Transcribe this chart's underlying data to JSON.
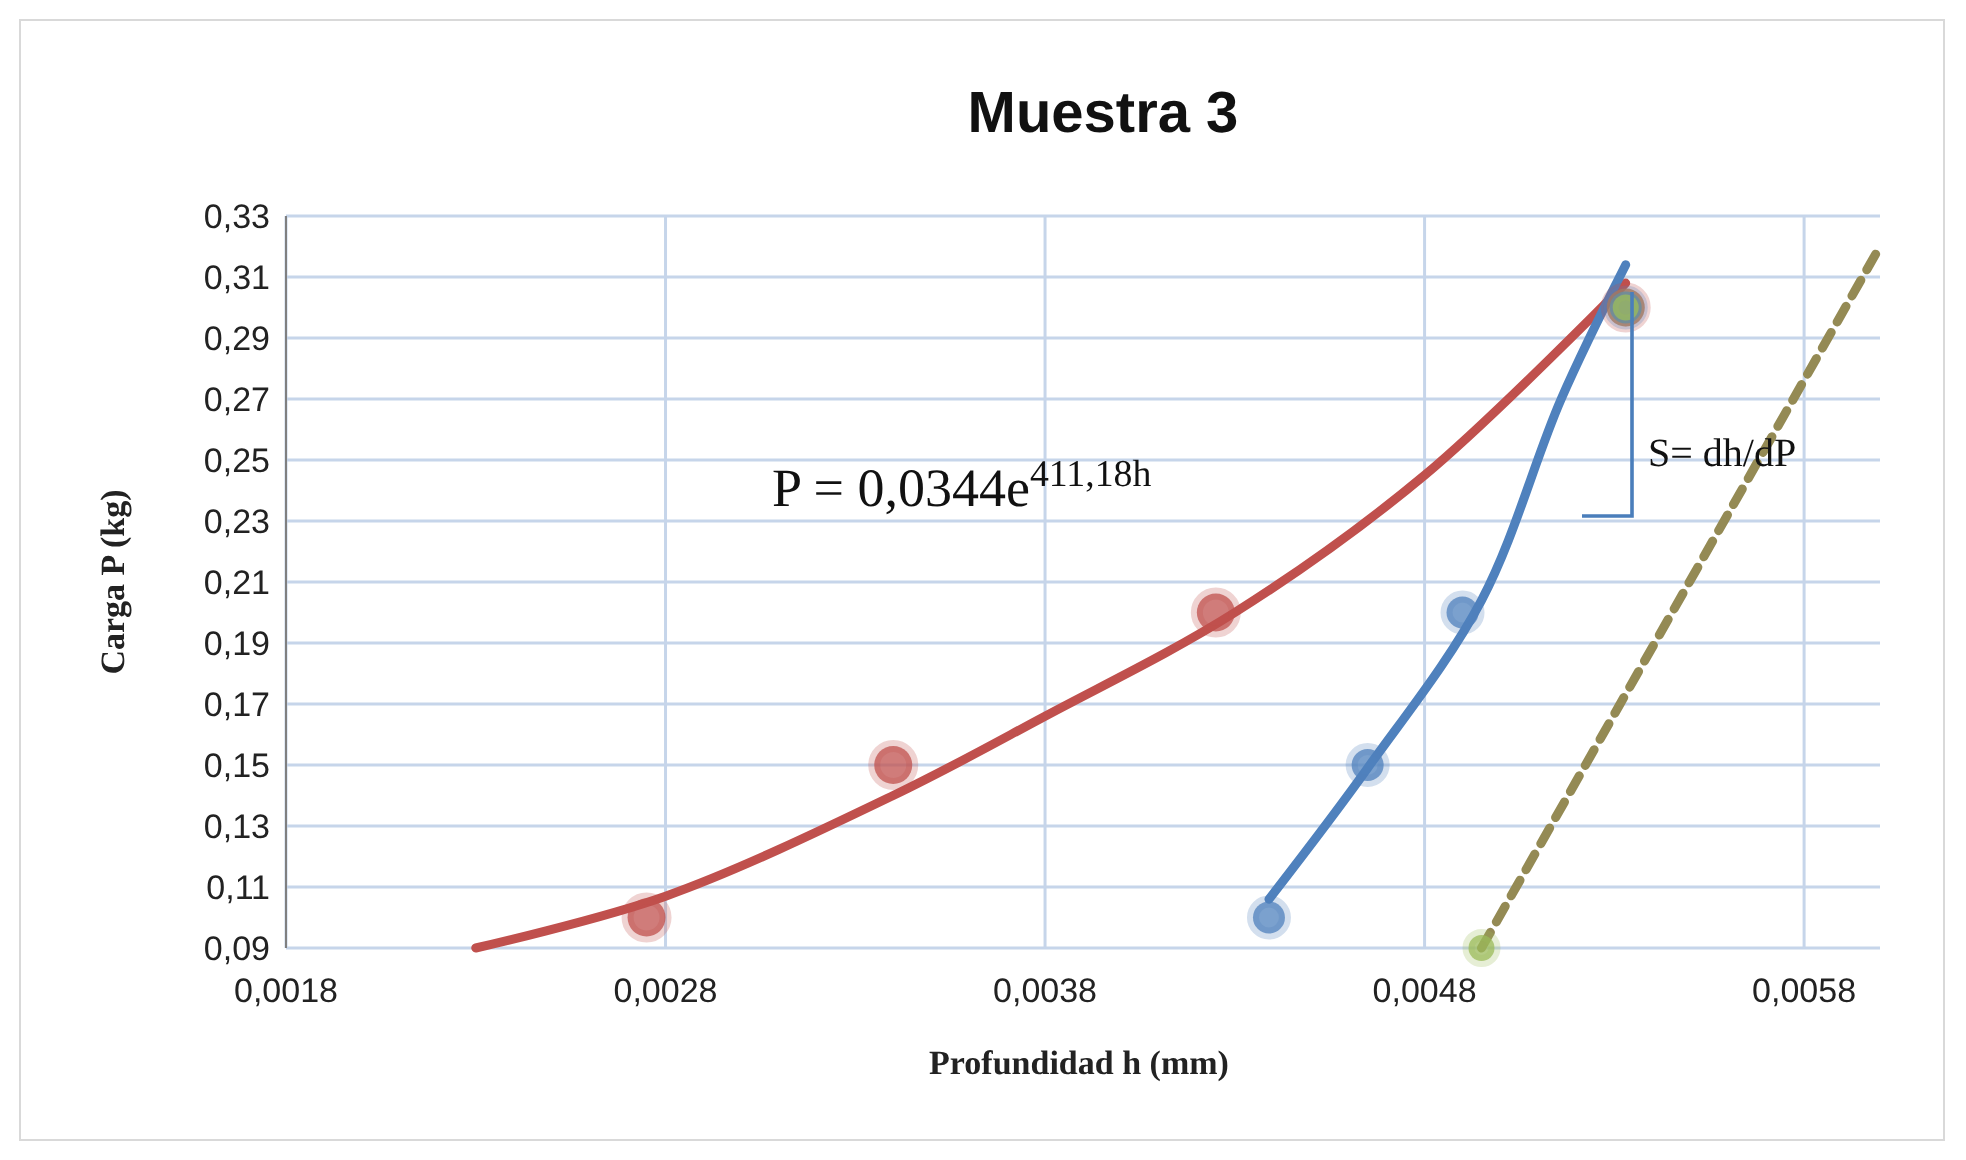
{
  "chart_data": {
    "type": "scatter",
    "title": "Muestra 3",
    "xlabel": "Profundidad h  (mm)",
    "ylabel": "Carga P (kg)",
    "xlim": [
      0.0018,
      0.006
    ],
    "ylim": [
      0.09,
      0.33
    ],
    "xticks": [
      {
        "value": 0.0018,
        "label": "0,0018"
      },
      {
        "value": 0.0028,
        "label": "0,0028"
      },
      {
        "value": 0.0038,
        "label": "0,0038"
      },
      {
        "value": 0.0048,
        "label": "0,0048"
      },
      {
        "value": 0.0058,
        "label": "0,0058"
      }
    ],
    "yticks": [
      {
        "value": 0.09,
        "label": "0,09"
      },
      {
        "value": 0.11,
        "label": "0,11"
      },
      {
        "value": 0.13,
        "label": "0,13"
      },
      {
        "value": 0.15,
        "label": "0,15"
      },
      {
        "value": 0.17,
        "label": "0,17"
      },
      {
        "value": 0.19,
        "label": "0,19"
      },
      {
        "value": 0.21,
        "label": "0,21"
      },
      {
        "value": 0.23,
        "label": "0,23"
      },
      {
        "value": 0.25,
        "label": "0,25"
      },
      {
        "value": 0.27,
        "label": "0,27"
      },
      {
        "value": 0.29,
        "label": "0,29"
      },
      {
        "value": 0.31,
        "label": "0,31"
      },
      {
        "value": 0.33,
        "label": "0,33"
      }
    ],
    "grid": true,
    "marker": "circle",
    "series": [
      {
        "type": "line",
        "marker": "none",
        "color": "#c0504d",
        "x": [
          0.0023,
          0.0028,
          0.0034,
          0.0038,
          0.0043,
          0.0048,
          0.00533
        ],
        "values": [
          0.09,
          0.107,
          0.14,
          0.166,
          0.2,
          0.245,
          0.308
        ]
      },
      {
        "type": "line",
        "marker": "none",
        "color": "#4f81bd",
        "x": [
          0.00439,
          0.00465,
          0.00495,
          0.00516,
          0.00533
        ],
        "values": [
          0.106,
          0.149,
          0.204,
          0.27,
          0.314
        ]
      },
      {
        "type": "line",
        "marker": "none",
        "color": "#948a54",
        "line_style": "dashed",
        "x": [
          0.00495,
          0.006
        ],
        "values": [
          0.09,
          0.32
        ]
      },
      {
        "color": "#c0504d",
        "x": [
          0.00275,
          0.0034,
          0.00425,
          0.00533
        ],
        "values": [
          0.1,
          0.15,
          0.2,
          0.3
        ]
      },
      {
        "color": "#4f81bd",
        "x": [
          0.00439,
          0.00465,
          0.0049,
          0.00533
        ],
        "values": [
          0.1,
          0.15,
          0.2,
          0.3
        ]
      },
      {
        "color": "#9bbb59",
        "x": [
          0.00495,
          0.00533
        ],
        "values": [
          0.09,
          0.3
        ]
      }
    ],
    "annotations": [
      "P = 0,0344e$^{411,18h}$",
      "S= dh/dP"
    ]
  }
}
